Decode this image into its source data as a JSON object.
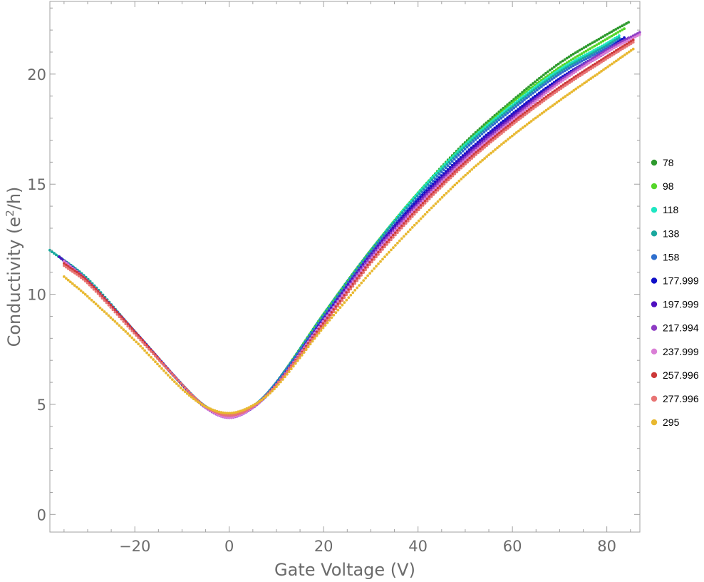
{
  "chart_data": {
    "type": "scatter",
    "xlabel": "Gate Voltage (V)",
    "ylabel": "Conductivity (e",
    "ylabel_sup": "2",
    "ylabel_end": "/h)",
    "xlim": [
      -38,
      87
    ],
    "ylim": [
      -0.8,
      23.3
    ],
    "xticks": [
      -20,
      0,
      20,
      40,
      60,
      80
    ],
    "yticks": [
      0,
      5,
      10,
      15,
      20
    ],
    "grid": false,
    "legend_position": "right",
    "series": [
      {
        "name": "78",
        "color": "#2e9a2e",
        "xmin": -36,
        "xmax": 85,
        "points": [
          [
            -36,
            11.7
          ],
          [
            -30,
            10.6
          ],
          [
            -20,
            8.3
          ],
          [
            -10,
            5.9
          ],
          [
            -5,
            4.9
          ],
          [
            0,
            4.5
          ],
          [
            5,
            4.9
          ],
          [
            10,
            6.0
          ],
          [
            20,
            9.1
          ],
          [
            30,
            12.0
          ],
          [
            40,
            14.6
          ],
          [
            50,
            16.9
          ],
          [
            60,
            18.8
          ],
          [
            70,
            20.5
          ],
          [
            80,
            21.8
          ],
          [
            85,
            22.4
          ]
        ]
      },
      {
        "name": "98",
        "color": "#55d62a",
        "xmin": -36,
        "xmax": 84,
        "points": [
          [
            -36,
            11.7
          ],
          [
            -30,
            10.6
          ],
          [
            -20,
            8.3
          ],
          [
            -10,
            5.9
          ],
          [
            -5,
            4.9
          ],
          [
            0,
            4.5
          ],
          [
            5,
            4.9
          ],
          [
            10,
            6.0
          ],
          [
            20,
            9.1
          ],
          [
            30,
            12.0
          ],
          [
            40,
            14.6
          ],
          [
            50,
            16.8
          ],
          [
            60,
            18.7
          ],
          [
            70,
            20.3
          ],
          [
            80,
            21.6
          ],
          [
            84,
            22.1
          ]
        ]
      },
      {
        "name": "118",
        "color": "#1ee6c2",
        "xmin": -38,
        "xmax": 83,
        "points": [
          [
            -38,
            12.0
          ],
          [
            -30,
            10.7
          ],
          [
            -20,
            8.3
          ],
          [
            -10,
            5.9
          ],
          [
            -5,
            4.9
          ],
          [
            0,
            4.5
          ],
          [
            5,
            4.9
          ],
          [
            10,
            6.0
          ],
          [
            20,
            9.1
          ],
          [
            30,
            12.0
          ],
          [
            40,
            14.6
          ],
          [
            50,
            16.8
          ],
          [
            60,
            18.6
          ],
          [
            70,
            20.2
          ],
          [
            80,
            21.4
          ],
          [
            83,
            21.8
          ]
        ]
      },
      {
        "name": "138",
        "color": "#1aa89e",
        "xmin": -38,
        "xmax": 83,
        "points": [
          [
            -38,
            12.0
          ],
          [
            -30,
            10.7
          ],
          [
            -20,
            8.3
          ],
          [
            -10,
            5.9
          ],
          [
            -5,
            4.9
          ],
          [
            0,
            4.5
          ],
          [
            5,
            4.9
          ],
          [
            10,
            6.0
          ],
          [
            20,
            9.1
          ],
          [
            30,
            12.0
          ],
          [
            40,
            14.5
          ],
          [
            50,
            16.7
          ],
          [
            60,
            18.5
          ],
          [
            70,
            20.1
          ],
          [
            80,
            21.3
          ],
          [
            83,
            21.7
          ]
        ]
      },
      {
        "name": "158",
        "color": "#2f6fce",
        "xmin": -36,
        "xmax": 83,
        "points": [
          [
            -36,
            11.7
          ],
          [
            -30,
            10.6
          ],
          [
            -20,
            8.3
          ],
          [
            -10,
            5.9
          ],
          [
            -5,
            4.9
          ],
          [
            0,
            4.45
          ],
          [
            5,
            4.9
          ],
          [
            10,
            6.0
          ],
          [
            20,
            9.0
          ],
          [
            30,
            11.9
          ],
          [
            40,
            14.4
          ],
          [
            50,
            16.6
          ],
          [
            60,
            18.4
          ],
          [
            70,
            20.0
          ],
          [
            80,
            21.2
          ],
          [
            83,
            21.6
          ]
        ]
      },
      {
        "name": "177.999",
        "color": "#1010c8",
        "xmin": -36,
        "xmax": 84,
        "points": [
          [
            -36,
            11.7
          ],
          [
            -30,
            10.6
          ],
          [
            -20,
            8.3
          ],
          [
            -10,
            5.9
          ],
          [
            -5,
            4.85
          ],
          [
            0,
            4.4
          ],
          [
            5,
            4.85
          ],
          [
            10,
            5.9
          ],
          [
            20,
            8.9
          ],
          [
            30,
            11.8
          ],
          [
            40,
            14.3
          ],
          [
            50,
            16.4
          ],
          [
            60,
            18.2
          ],
          [
            70,
            19.8
          ],
          [
            80,
            21.1
          ],
          [
            84,
            21.7
          ]
        ]
      },
      {
        "name": "197.999",
        "color": "#5010c0",
        "xmin": -36,
        "xmax": 85,
        "points": [
          [
            -36,
            11.7
          ],
          [
            -30,
            10.6
          ],
          [
            -20,
            8.3
          ],
          [
            -10,
            5.9
          ],
          [
            -5,
            4.85
          ],
          [
            0,
            4.4
          ],
          [
            5,
            4.85
          ],
          [
            10,
            5.9
          ],
          [
            20,
            8.9
          ],
          [
            30,
            11.8
          ],
          [
            40,
            14.2
          ],
          [
            50,
            16.3
          ],
          [
            60,
            18.1
          ],
          [
            70,
            19.7
          ],
          [
            80,
            21.0
          ],
          [
            85,
            21.7
          ]
        ]
      },
      {
        "name": "217.994",
        "color": "#8e3cc4",
        "xmin": -35,
        "xmax": 87,
        "points": [
          [
            -35,
            11.5
          ],
          [
            -30,
            10.6
          ],
          [
            -20,
            8.3
          ],
          [
            -10,
            5.9
          ],
          [
            -5,
            4.85
          ],
          [
            0,
            4.4
          ],
          [
            5,
            4.85
          ],
          [
            10,
            5.9
          ],
          [
            20,
            8.8
          ],
          [
            30,
            11.7
          ],
          [
            40,
            14.1
          ],
          [
            50,
            16.2
          ],
          [
            60,
            18.0
          ],
          [
            70,
            19.7
          ],
          [
            80,
            21.1
          ],
          [
            87,
            21.9
          ]
        ]
      },
      {
        "name": "237.999",
        "color": "#da7ed6",
        "xmin": -35,
        "xmax": 87,
        "points": [
          [
            -35,
            11.5
          ],
          [
            -30,
            10.6
          ],
          [
            -20,
            8.3
          ],
          [
            -10,
            5.9
          ],
          [
            -5,
            4.85
          ],
          [
            0,
            4.4
          ],
          [
            5,
            4.85
          ],
          [
            10,
            5.9
          ],
          [
            20,
            8.8
          ],
          [
            30,
            11.6
          ],
          [
            40,
            14.0
          ],
          [
            50,
            16.1
          ],
          [
            60,
            17.9
          ],
          [
            70,
            19.6
          ],
          [
            80,
            21.0
          ],
          [
            87,
            21.8
          ]
        ]
      },
      {
        "name": "257.996",
        "color": "#cc3838",
        "xmin": -35,
        "xmax": 86,
        "points": [
          [
            -35,
            11.4
          ],
          [
            -30,
            10.6
          ],
          [
            -20,
            8.3
          ],
          [
            -10,
            5.9
          ],
          [
            -5,
            4.9
          ],
          [
            0,
            4.5
          ],
          [
            5,
            4.9
          ],
          [
            10,
            5.9
          ],
          [
            20,
            8.7
          ],
          [
            30,
            11.5
          ],
          [
            40,
            13.9
          ],
          [
            50,
            16.0
          ],
          [
            60,
            17.8
          ],
          [
            70,
            19.4
          ],
          [
            80,
            20.8
          ],
          [
            86,
            21.6
          ]
        ]
      },
      {
        "name": "277.996",
        "color": "#e87474",
        "xmin": -35,
        "xmax": 86,
        "points": [
          [
            -35,
            11.3
          ],
          [
            -30,
            10.5
          ],
          [
            -20,
            8.2
          ],
          [
            -10,
            5.9
          ],
          [
            -5,
            4.9
          ],
          [
            0,
            4.5
          ],
          [
            5,
            4.9
          ],
          [
            10,
            5.9
          ],
          [
            20,
            8.6
          ],
          [
            30,
            11.4
          ],
          [
            40,
            13.8
          ],
          [
            50,
            15.9
          ],
          [
            60,
            17.7
          ],
          [
            70,
            19.3
          ],
          [
            80,
            20.7
          ],
          [
            86,
            21.5
          ]
        ]
      },
      {
        "name": "295",
        "color": "#e8b830",
        "xmin": -35,
        "xmax": 86,
        "points": [
          [
            -35,
            10.8
          ],
          [
            -30,
            9.9
          ],
          [
            -20,
            7.9
          ],
          [
            -10,
            5.7
          ],
          [
            -5,
            4.9
          ],
          [
            0,
            4.6
          ],
          [
            5,
            4.95
          ],
          [
            10,
            5.8
          ],
          [
            20,
            8.5
          ],
          [
            30,
            11.0
          ],
          [
            40,
            13.3
          ],
          [
            50,
            15.4
          ],
          [
            60,
            17.2
          ],
          [
            70,
            18.8
          ],
          [
            80,
            20.3
          ],
          [
            86,
            21.2
          ]
        ]
      }
    ]
  }
}
